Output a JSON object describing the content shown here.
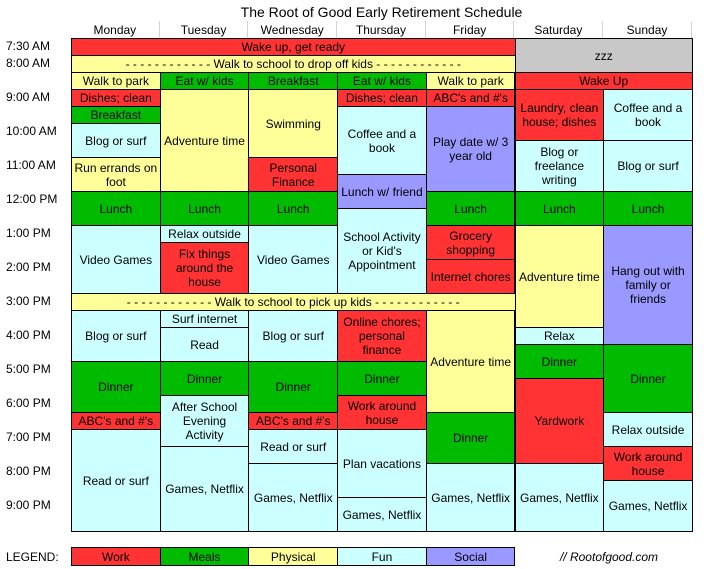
{
  "title": "The Root of Good Early Retirement Schedule",
  "colors": {
    "Work": "#ff3333",
    "Meals": "#00bb00",
    "Physical": "#ffff99",
    "Fun": "#ccffff",
    "Social": "#9999ff",
    "Sleep": "#c8c8c8"
  },
  "days": [
    "Monday",
    "Tuesday",
    "Wednesday",
    "Thursday",
    "Friday",
    "Saturday",
    "Sunday"
  ],
  "times": [
    "7:30 AM",
    "8:00 AM",
    "9:00 AM",
    "10:00 AM",
    "11:00 AM",
    "12:00 PM",
    "1:00 PM",
    "2:00 PM",
    "3:00 PM",
    "4:00 PM",
    "5:00 PM",
    "6:00 PM",
    "7:00 PM",
    "8:00 PM",
    "9:00 PM"
  ],
  "events": [
    {
      "text": "Wake up, get ready",
      "cat": "Work",
      "day": 0,
      "span": 5,
      "start": "7:30",
      "end": "8:00"
    },
    {
      "text": "zzz",
      "cat": "Sleep",
      "day": 5,
      "span": 2,
      "start": "7:30",
      "end": "8:30"
    },
    {
      "text": "- - - - - - - - - - - - Walk to school to drop off kids - - - - - - - - - - - -",
      "cat": "Physical",
      "day": 0,
      "span": 5,
      "start": "8:00",
      "end": "8:30"
    },
    {
      "text": "Walk to park",
      "cat": "Physical",
      "day": 0,
      "span": 1,
      "start": "8:30",
      "end": "9:00"
    },
    {
      "text": "Eat w/ kids",
      "cat": "Meals",
      "day": 1,
      "span": 1,
      "start": "8:30",
      "end": "9:00"
    },
    {
      "text": "Breakfast",
      "cat": "Meals",
      "day": 2,
      "span": 1,
      "start": "8:30",
      "end": "9:00"
    },
    {
      "text": "Eat w/ kids",
      "cat": "Meals",
      "day": 3,
      "span": 1,
      "start": "8:30",
      "end": "9:00"
    },
    {
      "text": "Walk to park",
      "cat": "Physical",
      "day": 4,
      "span": 1,
      "start": "8:30",
      "end": "9:00"
    },
    {
      "text": "Wake Up",
      "cat": "Work",
      "day": 5,
      "span": 2,
      "start": "8:30",
      "end": "9:00"
    },
    {
      "text": "Dishes; clean",
      "cat": "Work",
      "day": 0,
      "span": 1,
      "start": "9:00",
      "end": "9:30"
    },
    {
      "text": "Breakfast",
      "cat": "Meals",
      "day": 0,
      "span": 1,
      "start": "9:30",
      "end": "10:00"
    },
    {
      "text": "Blog or surf",
      "cat": "Fun",
      "day": 0,
      "span": 1,
      "start": "10:00",
      "end": "11:00"
    },
    {
      "text": "Run errands on foot",
      "cat": "Physical",
      "day": 0,
      "span": 1,
      "start": "11:00",
      "end": "12:00"
    },
    {
      "text": "Adventure time",
      "cat": "Physical",
      "day": 1,
      "span": 1,
      "start": "9:00",
      "end": "12:00"
    },
    {
      "text": "Swimming",
      "cat": "Physical",
      "day": 2,
      "span": 1,
      "start": "9:00",
      "end": "11:00"
    },
    {
      "text": "Personal Finance",
      "cat": "Work",
      "day": 2,
      "span": 1,
      "start": "11:00",
      "end": "12:00"
    },
    {
      "text": "Dishes; clean",
      "cat": "Work",
      "day": 3,
      "span": 1,
      "start": "9:00",
      "end": "9:30"
    },
    {
      "text": "Coffee and a book",
      "cat": "Fun",
      "day": 3,
      "span": 1,
      "start": "9:30",
      "end": "11:30"
    },
    {
      "text": "Lunch w/ friend",
      "cat": "Social",
      "day": 3,
      "span": 1,
      "start": "11:30",
      "end": "12:30"
    },
    {
      "text": "ABC's and #'s",
      "cat": "Work",
      "day": 4,
      "span": 1,
      "start": "9:00",
      "end": "9:30"
    },
    {
      "text": "Play date w/ 3 year old",
      "cat": "Social",
      "day": 4,
      "span": 1,
      "start": "9:30",
      "end": "12:00"
    },
    {
      "text": "Laundry, clean house; dishes",
      "cat": "Work",
      "day": 5,
      "span": 1,
      "start": "9:00",
      "end": "10:30"
    },
    {
      "text": "Blog or freelance writing",
      "cat": "Fun",
      "day": 5,
      "span": 1,
      "start": "10:30",
      "end": "12:00"
    },
    {
      "text": "Coffee and a book",
      "cat": "Fun",
      "day": 6,
      "span": 1,
      "start": "9:00",
      "end": "10:30"
    },
    {
      "text": "Blog or surf",
      "cat": "Fun",
      "day": 6,
      "span": 1,
      "start": "10:30",
      "end": "12:00"
    },
    {
      "text": "Lunch",
      "cat": "Meals",
      "day": 0,
      "span": 1,
      "start": "12:00",
      "end": "13:00"
    },
    {
      "text": "Lunch",
      "cat": "Meals",
      "day": 1,
      "span": 1,
      "start": "12:00",
      "end": "13:00"
    },
    {
      "text": "Lunch",
      "cat": "Meals",
      "day": 2,
      "span": 1,
      "start": "12:00",
      "end": "13:00"
    },
    {
      "text": "Lunch",
      "cat": "Meals",
      "day": 4,
      "span": 1,
      "start": "12:00",
      "end": "13:00"
    },
    {
      "text": "Lunch",
      "cat": "Meals",
      "day": 5,
      "span": 1,
      "start": "12:00",
      "end": "13:00"
    },
    {
      "text": "Lunch",
      "cat": "Meals",
      "day": 6,
      "span": 1,
      "start": "12:00",
      "end": "13:00"
    },
    {
      "text": "Video Games",
      "cat": "Fun",
      "day": 0,
      "span": 1,
      "start": "13:00",
      "end": "15:00"
    },
    {
      "text": "Relax outside",
      "cat": "Fun",
      "day": 1,
      "span": 1,
      "start": "13:00",
      "end": "13:30"
    },
    {
      "text": "Fix things around the house",
      "cat": "Work",
      "day": 1,
      "span": 1,
      "start": "13:30",
      "end": "15:00"
    },
    {
      "text": "Video Games",
      "cat": "Fun",
      "day": 2,
      "span": 1,
      "start": "13:00",
      "end": "15:00"
    },
    {
      "text": "School Activity or Kid's Appointment",
      "cat": "Fun",
      "day": 3,
      "span": 1,
      "start": "12:30",
      "end": "15:00"
    },
    {
      "text": "Grocery shopping",
      "cat": "Work",
      "day": 4,
      "span": 1,
      "start": "13:00",
      "end": "14:00"
    },
    {
      "text": "Internet chores",
      "cat": "Work",
      "day": 4,
      "span": 1,
      "start": "14:00",
      "end": "15:00"
    },
    {
      "text": "Adventure time",
      "cat": "Physical",
      "day": 5,
      "span": 1,
      "start": "13:00",
      "end": "16:00"
    },
    {
      "text": "Hang out with family or friends",
      "cat": "Social",
      "day": 6,
      "span": 1,
      "start": "13:00",
      "end": "16:30"
    },
    {
      "text": "- - - - - - - - - - - - Walk to school to pick up kids - - - - - - - - - - - -",
      "cat": "Physical",
      "day": 0,
      "span": 5,
      "start": "15:00",
      "end": "15:30"
    },
    {
      "text": "Blog or surf",
      "cat": "Fun",
      "day": 0,
      "span": 1,
      "start": "15:30",
      "end": "17:00"
    },
    {
      "text": "Surf internet",
      "cat": "Fun",
      "day": 1,
      "span": 1,
      "start": "15:30",
      "end": "16:00"
    },
    {
      "text": "Read",
      "cat": "Fun",
      "day": 1,
      "span": 1,
      "start": "16:00",
      "end": "17:00"
    },
    {
      "text": "Blog or surf",
      "cat": "Fun",
      "day": 2,
      "span": 1,
      "start": "15:30",
      "end": "17:00"
    },
    {
      "text": "Online chores; personal finance",
      "cat": "Work",
      "day": 3,
      "span": 1,
      "start": "15:30",
      "end": "17:00"
    },
    {
      "text": "Adventure time",
      "cat": "Physical",
      "day": 4,
      "span": 1,
      "start": "15:30",
      "end": "18:30"
    },
    {
      "text": "Relax",
      "cat": "Fun",
      "day": 5,
      "span": 1,
      "start": "16:00",
      "end": "16:30"
    },
    {
      "text": "Dinner",
      "cat": "Meals",
      "day": 5,
      "span": 1,
      "start": "16:30",
      "end": "17:30"
    },
    {
      "text": "Dinner",
      "cat": "Meals",
      "day": 6,
      "span": 1,
      "start": "16:30",
      "end": "18:30"
    },
    {
      "text": "Dinner",
      "cat": "Meals",
      "day": 0,
      "span": 1,
      "start": "17:00",
      "end": "18:30"
    },
    {
      "text": "Dinner",
      "cat": "Meals",
      "day": 1,
      "span": 1,
      "start": "17:00",
      "end": "18:00"
    },
    {
      "text": "Dinner",
      "cat": "Meals",
      "day": 2,
      "span": 1,
      "start": "17:00",
      "end": "18:30"
    },
    {
      "text": "Dinner",
      "cat": "Meals",
      "day": 3,
      "span": 1,
      "start": "17:00",
      "end": "18:00"
    },
    {
      "text": "ABC's and #'s",
      "cat": "Work",
      "day": 0,
      "span": 1,
      "start": "18:30",
      "end": "19:00"
    },
    {
      "text": "Read or surf",
      "cat": "Fun",
      "day": 0,
      "span": 1,
      "start": "19:00",
      "end": "22:00"
    },
    {
      "text": "After School Evening Activity",
      "cat": "Fun",
      "day": 1,
      "span": 1,
      "start": "18:00",
      "end": "19:30"
    },
    {
      "text": "Games, Netflix",
      "cat": "Fun",
      "day": 1,
      "span": 1,
      "start": "19:30",
      "end": "22:00"
    },
    {
      "text": "ABC's and #'s",
      "cat": "Work",
      "day": 2,
      "span": 1,
      "start": "18:30",
      "end": "19:00"
    },
    {
      "text": "Read or surf",
      "cat": "Fun",
      "day": 2,
      "span": 1,
      "start": "19:00",
      "end": "20:00"
    },
    {
      "text": "Games, Netflix",
      "cat": "Fun",
      "day": 2,
      "span": 1,
      "start": "20:00",
      "end": "22:00"
    },
    {
      "text": "Work around house",
      "cat": "Work",
      "day": 3,
      "span": 1,
      "start": "18:00",
      "end": "19:00"
    },
    {
      "text": "Plan vacations",
      "cat": "Fun",
      "day": 3,
      "span": 1,
      "start": "19:00",
      "end": "21:00"
    },
    {
      "text": "Games, Netflix",
      "cat": "Fun",
      "day": 3,
      "span": 1,
      "start": "21:00",
      "end": "22:00"
    },
    {
      "text": "Dinner",
      "cat": "Meals",
      "day": 4,
      "span": 1,
      "start": "18:30",
      "end": "20:00"
    },
    {
      "text": "Games, Netflix",
      "cat": "Fun",
      "day": 4,
      "span": 1,
      "start": "20:00",
      "end": "22:00"
    },
    {
      "text": "Yardwork",
      "cat": "Work",
      "day": 5,
      "span": 1,
      "start": "17:30",
      "end": "20:00"
    },
    {
      "text": "Games, Netflix",
      "cat": "Fun",
      "day": 5,
      "span": 1,
      "start": "20:00",
      "end": "22:00"
    },
    {
      "text": "Relax outside",
      "cat": "Fun",
      "day": 6,
      "span": 1,
      "start": "18:30",
      "end": "19:30"
    },
    {
      "text": "Work around house",
      "cat": "Work",
      "day": 6,
      "span": 1,
      "start": "19:30",
      "end": "20:30"
    },
    {
      "text": "Games, Netflix",
      "cat": "Fun",
      "day": 6,
      "span": 1,
      "start": "20:30",
      "end": "22:00"
    }
  ],
  "legend": {
    "label": "LEGEND:",
    "items": [
      {
        "name": "Work",
        "cat": "Work"
      },
      {
        "name": "Meals",
        "cat": "Meals"
      },
      {
        "name": "Physical",
        "cat": "Physical"
      },
      {
        "name": "Fun",
        "cat": "Fun"
      },
      {
        "name": "Social",
        "cat": "Social"
      }
    ]
  },
  "credit": "// Rootofgood.com"
}
